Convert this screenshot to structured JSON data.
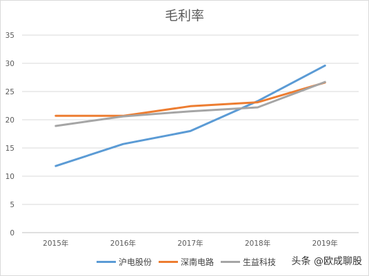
{
  "chart_data": {
    "type": "line",
    "title": "毛利率",
    "categories": [
      "2015年",
      "2016年",
      "2017年",
      "2018年",
      "2019年"
    ],
    "ylim": [
      0,
      35
    ],
    "yticks": [
      0,
      5,
      10,
      15,
      20,
      25,
      30,
      35
    ],
    "grid": true,
    "legend_position": "bottom",
    "series": [
      {
        "name": "沪电股份",
        "color": "#5b9bd5",
        "values": [
          11.8,
          15.7,
          18.0,
          23.3,
          29.6
        ]
      },
      {
        "name": "深南电路",
        "color": "#ed7d31",
        "values": [
          20.7,
          20.7,
          22.4,
          23.1,
          26.6
        ]
      },
      {
        "name": "生益科技",
        "color": "#a5a5a5",
        "values": [
          18.9,
          20.6,
          21.5,
          22.2,
          26.7
        ]
      }
    ]
  },
  "watermark": "头条 @欧成聊股"
}
